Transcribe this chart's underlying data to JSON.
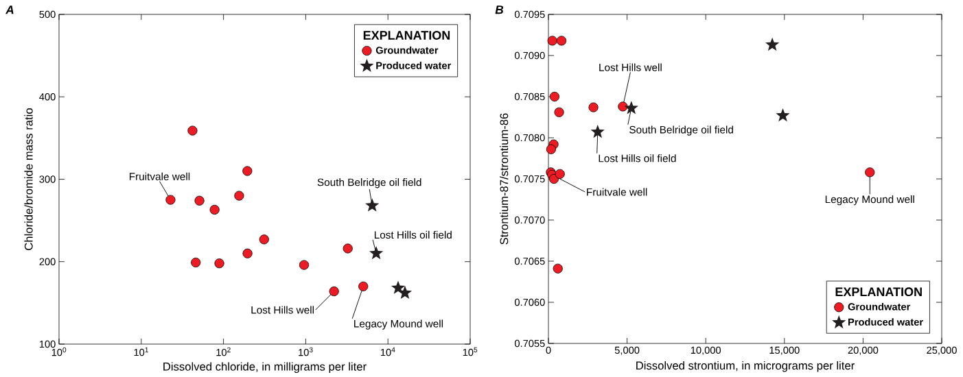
{
  "chart_data": [
    {
      "type": "scatter",
      "title": "*A*",
      "xlabel": "Dissolved chloride, in milligrams per liter",
      "ylabel": "Chloride/bromide mass ratio",
      "log": "x",
      "xlim": [
        1,
        100000
      ],
      "ylim": [
        100,
        500
      ],
      "xticks": [
        {
          "value": 1,
          "label": "10$^{0}$"
        },
        {
          "value": 10,
          "label": "10$^{1}$"
        },
        {
          "value": 100,
          "label": "10$^{2}$"
        },
        {
          "value": 1000,
          "label": "10$^{3}$"
        },
        {
          "value": 10000,
          "label": "10$^{4}$"
        },
        {
          "value": 100000,
          "label": "10$^{5}$"
        }
      ],
      "yticks": [
        100,
        200,
        300,
        400,
        500
      ],
      "grid": false,
      "legend": "top right",
      "legend_title": "EXPLANATION",
      "series": [
        {
          "name": "Groundwater",
          "color": "#ed1c24",
          "marker": "circle",
          "x": [
            22.7,
            42,
            51,
            78,
            155,
            195,
            46,
            89,
            196,
            312,
            955,
            3250,
            2210,
            5010
          ],
          "values": [
            275,
            359,
            274,
            263,
            280,
            310,
            199,
            198,
            210,
            227,
            196,
            216,
            164,
            170
          ]
        },
        {
          "name": "Produced water",
          "color": "#231f20",
          "marker": "star",
          "x": [
            6430,
            7200,
            13300,
            16100
          ],
          "values": [
            268,
            210,
            168,
            162
          ]
        }
      ],
      "annotations": [
        {
          "text": "Fruitvale well",
          "x": 22.7,
          "y": 275
        },
        {
          "text": "South Belridge oil field",
          "x": 6430,
          "y": 268
        },
        {
          "text": "Lost Hills oil field",
          "x": 7200,
          "y": 210
        },
        {
          "text": "Lost Hills well",
          "x": 2210,
          "y": 164
        },
        {
          "text": "Legacy Mound well",
          "x": 5010,
          "y": 170
        }
      ]
    },
    {
      "type": "scatter",
      "title": "*B*",
      "xlabel": "Dissolved strontium, in micrograms per liter",
      "ylabel": "Strontium-87/strontium-86",
      "xlim": [
        0,
        25000
      ],
      "ylim": [
        0.7055,
        0.7095
      ],
      "xticks": [
        0,
        {
          "value": 5000,
          "label": "5,000"
        },
        {
          "value": 10000,
          "label": "10,000"
        },
        {
          "value": 15000,
          "label": "15,000"
        },
        {
          "value": 20000,
          "label": "20,000"
        },
        {
          "value": 25000,
          "label": "25,000"
        }
      ],
      "yticks": [
        0.7055,
        {
          "value": 0.706,
          "label": "0.7060"
        },
        0.7065,
        {
          "value": 0.707,
          "label": "0.7070"
        },
        0.7075,
        {
          "value": 0.708,
          "label": "0.7080"
        },
        0.7085,
        {
          "value": 0.709,
          "label": "0.7090"
        },
        0.7095
      ],
      "grid": false,
      "legend": "bottom right",
      "legend_title": "EXPLANATION",
      "series": [
        {
          "name": "Groundwater",
          "color": "#ed1c24",
          "marker": "circle",
          "x": [
            250,
            830,
            390,
            680,
            2860,
            4730,
            330,
            170,
            150,
            230,
            350,
            730,
            600,
            20430
          ],
          "values": [
            0.70918,
            0.70918,
            0.7085,
            0.70831,
            0.70837,
            0.70838,
            0.70792,
            0.70786,
            0.70758,
            0.70755,
            0.7075,
            0.70756,
            0.70641,
            0.70758
          ]
        },
        {
          "name": "Produced water",
          "color": "#231f20",
          "marker": "star",
          "x": [
            14230,
            14900,
            3130,
            5270
          ],
          "values": [
            0.70913,
            0.70827,
            0.70807,
            0.70836
          ]
        }
      ],
      "annotations": [
        {
          "text": "Lost Hills well",
          "x": 4730,
          "y": 0.70838
        },
        {
          "text": "South Belridge oil field",
          "x": 5270,
          "y": 0.70836
        },
        {
          "text": "Lost Hills oil field",
          "x": 3130,
          "y": 0.70807
        },
        {
          "text": "Fruitvale well",
          "x": 230,
          "y": 0.70755
        },
        {
          "text": "Legacy Mound well",
          "x": 20430,
          "y": 0.70758
        }
      ]
    }
  ]
}
